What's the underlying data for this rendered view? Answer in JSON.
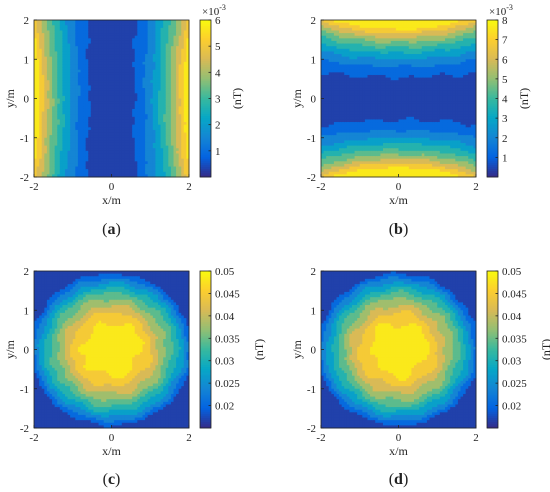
{
  "chart_data": [
    {
      "type": "heatmap",
      "panel_label": "a",
      "xlabel": "x/m",
      "ylabel": "y/m",
      "colorbar_label": "(nT)",
      "colorbar_multiplier_base": "×10",
      "colorbar_multiplier_exp": "-3",
      "xlim": [
        -2,
        2
      ],
      "ylim": [
        -2,
        2
      ],
      "xticks": [
        "-2",
        "0",
        "2"
      ],
      "yticks": [
        "2",
        "1",
        "0",
        "-1",
        "-2"
      ],
      "clim": [
        0,
        6
      ],
      "colorbar_ticks": [
        "6",
        "5",
        "4",
        "3",
        "2",
        "1"
      ],
      "colorbar_tick_values": [
        6,
        5,
        4,
        3,
        2,
        1
      ],
      "field": {
        "pattern": "x-squared",
        "description_values": {
          "center_min": 0.1,
          "edge_max": 6.0
        }
      },
      "levels": [
        0.6,
        1.2,
        1.8,
        2.4,
        3.0,
        3.6,
        4.2,
        4.8,
        5.4,
        6.0
      ]
    },
    {
      "type": "heatmap",
      "panel_label": "b",
      "xlabel": "x/m",
      "ylabel": "y/m",
      "colorbar_label": "(nT)",
      "colorbar_multiplier_base": "×10",
      "colorbar_multiplier_exp": "-3",
      "xlim": [
        -2,
        2
      ],
      "ylim": [
        -2,
        2
      ],
      "xticks": [
        "-2",
        "0",
        "2"
      ],
      "yticks": [
        "2",
        "1",
        "0",
        "-1",
        "-2"
      ],
      "clim": [
        0,
        8
      ],
      "colorbar_ticks": [
        "8",
        "7",
        "6",
        "5",
        "4",
        "3",
        "2",
        "1"
      ],
      "colorbar_tick_values": [
        8,
        7,
        6,
        5,
        4,
        3,
        2,
        1
      ],
      "field": {
        "pattern": "y-squared",
        "description_values": {
          "center_min": 0.1,
          "edge_max": 8.0
        }
      },
      "levels": [
        0.8,
        1.6,
        2.4,
        3.2,
        4.0,
        4.8,
        5.6,
        6.4,
        7.2,
        8.0
      ]
    },
    {
      "type": "heatmap",
      "panel_label": "c",
      "xlabel": "x/m",
      "ylabel": "y/m",
      "colorbar_label": "(nT)",
      "xlim": [
        -2,
        2
      ],
      "ylim": [
        -2,
        2
      ],
      "xticks": [
        "-2",
        "0",
        "2"
      ],
      "yticks": [
        "2",
        "1",
        "0",
        "-1",
        "-2"
      ],
      "clim": [
        0.015,
        0.05
      ],
      "colorbar_ticks": [
        "0.05",
        "0.045",
        "0.04",
        "0.035",
        "0.03",
        "0.025",
        "0.02"
      ],
      "colorbar_tick_values": [
        0.05,
        0.045,
        0.04,
        0.035,
        0.03,
        0.025,
        0.02
      ],
      "field": {
        "pattern": "center-peak",
        "description_values": {
          "center_max": 0.05,
          "corner_min": 0.015
        }
      },
      "levels": [
        0.0185,
        0.022,
        0.0255,
        0.029,
        0.0325,
        0.036,
        0.0395,
        0.043,
        0.0465,
        0.05
      ]
    },
    {
      "type": "heatmap",
      "panel_label": "d",
      "xlabel": "x/m",
      "ylabel": "y/m",
      "colorbar_label": "(nT)",
      "xlim": [
        -2,
        2
      ],
      "ylim": [
        -2,
        2
      ],
      "xticks": [
        "-2",
        "0",
        "2"
      ],
      "yticks": [
        "2",
        "1",
        "0",
        "-1",
        "-2"
      ],
      "clim": [
        0.015,
        0.05
      ],
      "colorbar_ticks": [
        "0.05",
        "0.045",
        "0.04",
        "0.035",
        "0.03",
        "0.025",
        "0.02"
      ],
      "colorbar_tick_values": [
        0.05,
        0.045,
        0.04,
        0.035,
        0.03,
        0.025,
        0.02
      ],
      "field": {
        "pattern": "center-peak",
        "description_values": {
          "center_max": 0.05,
          "corner_min": 0.015
        }
      },
      "levels": [
        0.0185,
        0.022,
        0.0255,
        0.029,
        0.0325,
        0.036,
        0.0395,
        0.043,
        0.0465,
        0.05
      ]
    }
  ],
  "colormap": "parula",
  "colormap_stops": [
    "#352a87",
    "#0363e1",
    "#1485d4",
    "#06a7c6",
    "#38b99e",
    "#92bf73",
    "#d9ba56",
    "#fcce2e",
    "#f9fb0e"
  ]
}
